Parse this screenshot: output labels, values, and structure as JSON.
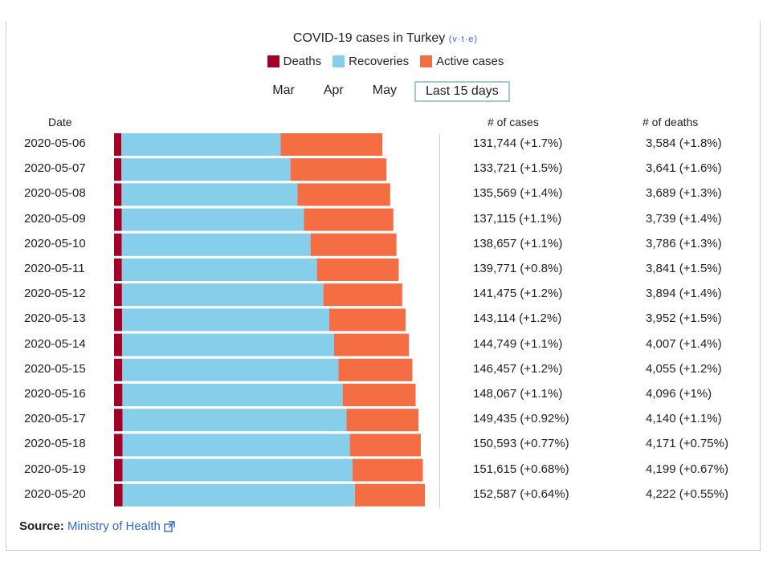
{
  "title": "COVID-19 cases in Turkey",
  "vte": "(v·t·e)",
  "legend": [
    {
      "label": "Deaths",
      "color": "#a50026"
    },
    {
      "label": "Recoveries",
      "color": "#87ceeb"
    },
    {
      "label": "Active cases",
      "color": "#f46d43"
    }
  ],
  "tabs": [
    {
      "label": "Mar",
      "active": false
    },
    {
      "label": "Apr",
      "active": false
    },
    {
      "label": "May",
      "active": false
    },
    {
      "label": "Last 15 days",
      "active": true
    }
  ],
  "headers": {
    "date": "Date",
    "cases": "# of cases",
    "deaths": "# of deaths"
  },
  "source": {
    "prefix": "Source:",
    "link": "Ministry of Health"
  },
  "chart_data": {
    "type": "bar",
    "orientation": "horizontal",
    "stacked": true,
    "categories": [
      "2020-05-06",
      "2020-05-07",
      "2020-05-08",
      "2020-05-09",
      "2020-05-10",
      "2020-05-11",
      "2020-05-12",
      "2020-05-13",
      "2020-05-14",
      "2020-05-15",
      "2020-05-16",
      "2020-05-17",
      "2020-05-18",
      "2020-05-19",
      "2020-05-20"
    ],
    "series": [
      {
        "name": "Deaths",
        "color": "#a50026",
        "values": [
          3584,
          3641,
          3689,
          3739,
          3786,
          3841,
          3894,
          3952,
          4007,
          4055,
          4096,
          4140,
          4171,
          4199,
          4222
        ]
      },
      {
        "name": "Recoveries",
        "color": "#87ceeb",
        "values": [
          78202,
          82984,
          86396,
          89480,
          92691,
          95780,
          98889,
          101715,
          104030,
          106133,
          108137,
          109962,
          111577,
          112895,
          113987
        ]
      },
      {
        "name": "Active cases",
        "color": "#f46d43",
        "values": [
          49958,
          47096,
          45484,
          43896,
          42180,
          40150,
          38692,
          37447,
          36712,
          36269,
          35834,
          35333,
          34845,
          34521,
          34378
        ]
      }
    ],
    "cases_labels": [
      "131,744 (+1.7%)",
      "133,721 (+1.5%)",
      "135,569 (+1.4%)",
      "137,115 (+1.1%)",
      "138,657 (+1.1%)",
      "139,771 (+0.8%)",
      "141,475 (+1.2%)",
      "143,114 (+1.2%)",
      "144,749 (+1.1%)",
      "146,457 (+1.2%)",
      "148,067 (+1.1%)",
      "149,435 (+0.92%)",
      "150,593 (+0.77%)",
      "151,615 (+0.68%)",
      "152,587 (+0.64%)"
    ],
    "deaths_labels": [
      "3,584 (+1.8%)",
      "3,641 (+1.6%)",
      "3,689 (+1.3%)",
      "3,739 (+1.4%)",
      "3,786 (+1.3%)",
      "3,841 (+1.5%)",
      "3,894 (+1.4%)",
      "3,952 (+1.5%)",
      "4,007 (+1.4%)",
      "4,055 (+1.2%)",
      "4,096 (+1%)",
      "4,140 (+1.1%)",
      "4,171 (+0.75%)",
      "4,199 (+0.67%)",
      "4,222 (+0.55%)"
    ],
    "xlim": [
      0,
      152587
    ]
  }
}
